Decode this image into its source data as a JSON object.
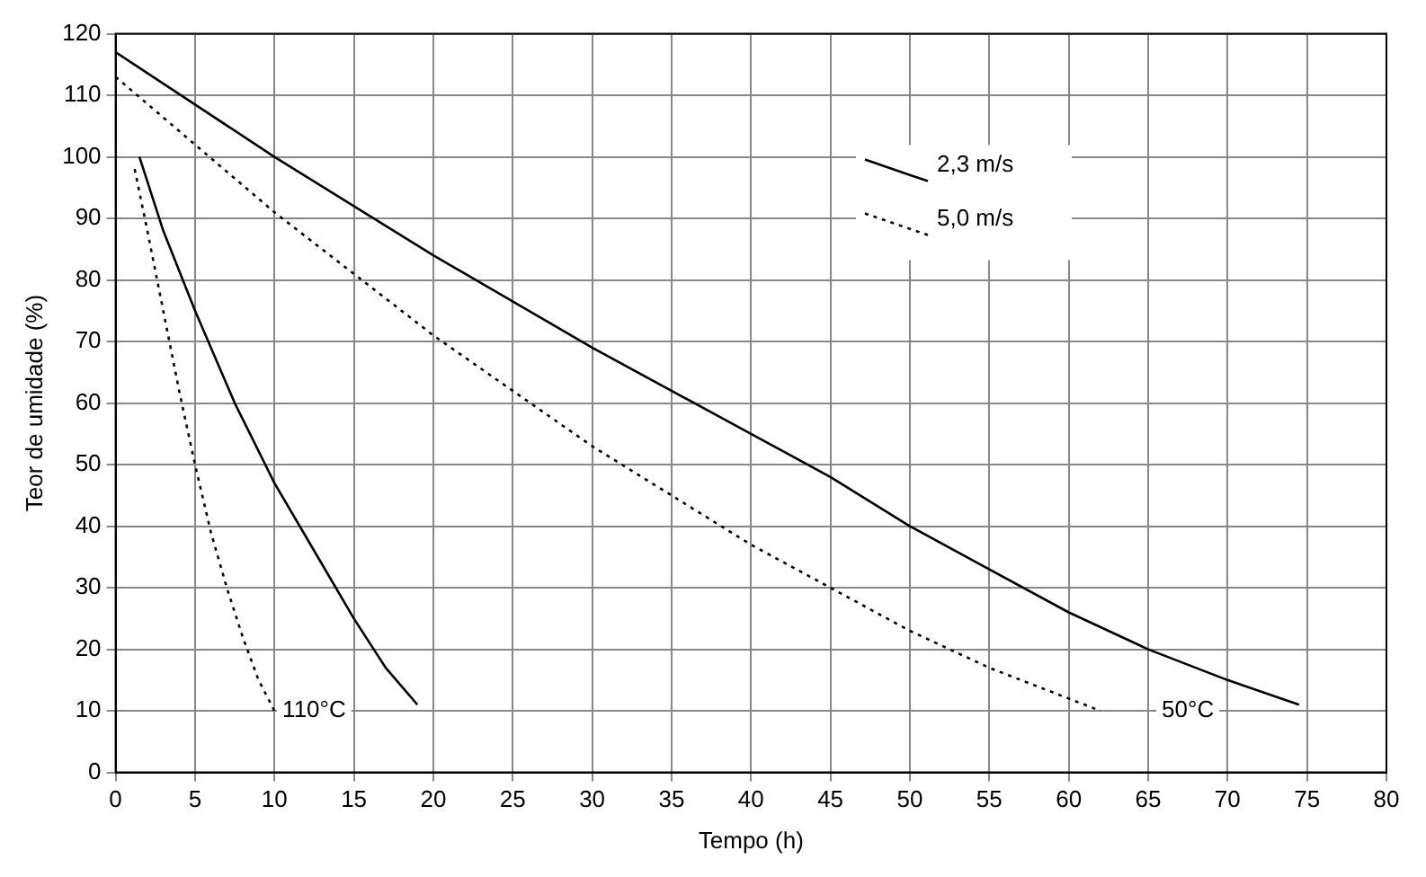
{
  "chart_data": {
    "type": "line",
    "xlabel": "Tempo (h)",
    "ylabel": "Teor de umidade (%)",
    "xlim": [
      0,
      80
    ],
    "xticks": [
      0,
      5,
      10,
      15,
      20,
      25,
      30,
      35,
      40,
      45,
      50,
      55,
      60,
      65,
      70,
      75,
      80
    ],
    "ylim": [
      0,
      120
    ],
    "yticks": [
      0,
      10,
      20,
      30,
      40,
      50,
      60,
      70,
      80,
      90,
      100,
      110,
      120
    ],
    "grid": true,
    "legend": "top right",
    "marker": "none",
    "series": [
      {
        "name": "2,3 m/s",
        "color": "#000000",
        "line_style": "solid",
        "x": [
          0,
          10,
          20,
          30,
          40,
          45,
          50,
          55,
          60,
          65,
          70,
          74.5
        ],
        "values": [
          117,
          100,
          84,
          69,
          55,
          48,
          40,
          33,
          26,
          20,
          15,
          11
        ]
      },
      {
        "name": "5,0 m/s",
        "color": "#000000",
        "line_style": "dotted",
        "x": [
          0,
          5,
          10,
          15,
          20,
          30,
          40,
          50,
          55,
          60,
          62
        ],
        "values": [
          113,
          102,
          91,
          81,
          71,
          53,
          37,
          23,
          17,
          12,
          10
        ]
      },
      {
        "color": "#000000",
        "line_style": "solid",
        "x": [
          1.5,
          3,
          5,
          7.5,
          10,
          12.5,
          15,
          17,
          19
        ],
        "values": [
          100,
          88,
          75,
          60,
          47,
          36,
          25,
          17,
          11
        ]
      },
      {
        "color": "#000000",
        "line_style": "dotted",
        "x": [
          1.2,
          2,
          3,
          4,
          5,
          6,
          7,
          8,
          9,
          10
        ],
        "values": [
          98,
          88,
          75,
          62,
          50,
          39,
          30,
          22,
          15,
          10
        ]
      }
    ],
    "annotations": [
      {
        "text": "110°C",
        "x": 12.5,
        "y": 10
      },
      {
        "text": "50°C",
        "x": 67.5,
        "y": 10
      }
    ]
  }
}
